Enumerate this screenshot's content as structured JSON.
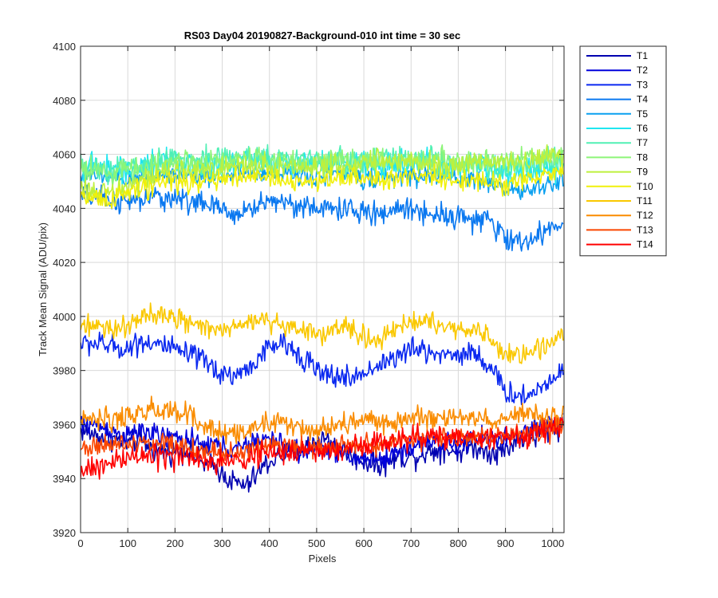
{
  "chart_data": {
    "type": "line",
    "title": "RS03 Day04 20190827-Background-010 int time = 30 sec",
    "xlabel": "Pixels",
    "ylabel": "Track Mean Signal (ADU/pix)",
    "xlim": [
      0,
      1024
    ],
    "ylim": [
      3920,
      4100
    ],
    "xticks": [
      0,
      100,
      200,
      300,
      400,
      500,
      600,
      700,
      800,
      900,
      1000
    ],
    "yticks": [
      3920,
      3940,
      3960,
      3980,
      4000,
      4020,
      4040,
      4060,
      4080,
      4100
    ],
    "grid": true,
    "legend_position": "outside-top-right",
    "x": [
      0,
      32,
      64,
      96,
      128,
      160,
      192,
      224,
      256,
      288,
      320,
      352,
      384,
      416,
      448,
      480,
      512,
      544,
      576,
      608,
      640,
      672,
      704,
      736,
      768,
      800,
      832,
      864,
      896,
      928,
      960,
      992,
      1023
    ],
    "series": [
      {
        "name": "T1",
        "color": "#0000b0",
        "values": [
          3958,
          3956,
          3955,
          3953,
          3954,
          3950,
          3950,
          3951,
          3946,
          3944,
          3939,
          3937,
          3944,
          3948,
          3950,
          3952,
          3955,
          3952,
          3948,
          3946,
          3945,
          3948,
          3948,
          3950,
          3951,
          3950,
          3952,
          3950,
          3950,
          3955,
          3955,
          3958,
          3960
        ],
        "noise": 5.0
      },
      {
        "name": "T2",
        "color": "#0000dc",
        "values": [
          3960,
          3960,
          3958,
          3955,
          3958,
          3956,
          3955,
          3955,
          3952,
          3953,
          3950,
          3952,
          3955,
          3954,
          3950,
          3950,
          3952,
          3950,
          3947,
          3948,
          3947,
          3950,
          3952,
          3954,
          3953,
          3952,
          3955,
          3955,
          3955,
          3956,
          3958,
          3960,
          3962
        ],
        "noise": 4.5
      },
      {
        "name": "T3",
        "color": "#0a28f0",
        "values": [
          3990,
          3990,
          3989,
          3988,
          3991,
          3990,
          3988,
          3986,
          3984,
          3980,
          3978,
          3980,
          3986,
          3990,
          3988,
          3984,
          3978,
          3978,
          3977,
          3980,
          3983,
          3985,
          3988,
          3987,
          3986,
          3986,
          3987,
          3982,
          3973,
          3970,
          3972,
          3976,
          3982
        ],
        "noise": 5.0
      },
      {
        "name": "T4",
        "color": "#0a78f0",
        "values": [
          4044,
          4044,
          4043,
          4042,
          4043,
          4044,
          4044,
          4043,
          4042,
          4040,
          4038,
          4039,
          4042,
          4043,
          4042,
          4040,
          4040,
          4040,
          4039,
          4038,
          4038,
          4040,
          4040,
          4038,
          4038,
          4037,
          4036,
          4035,
          4030,
          4027,
          4029,
          4032,
          4035
        ],
        "noise": 5.0
      },
      {
        "name": "T5",
        "color": "#0aa0f0",
        "values": [
          4052,
          4052,
          4051,
          4050,
          4051,
          4052,
          4053,
          4052,
          4052,
          4052,
          4052,
          4053,
          4052,
          4053,
          4053,
          4052,
          4052,
          4053,
          4052,
          4051,
          4051,
          4052,
          4052,
          4052,
          4052,
          4051,
          4051,
          4050,
          4047,
          4046,
          4047,
          4049,
          4050
        ],
        "noise": 4.0
      },
      {
        "name": "T6",
        "color": "#20e6f0",
        "values": [
          4056,
          4056,
          4055,
          4054,
          4055,
          4056,
          4057,
          4056,
          4056,
          4056,
          4057,
          4058,
          4057,
          4057,
          4057,
          4057,
          4056,
          4057,
          4056,
          4056,
          4056,
          4057,
          4057,
          4057,
          4056,
          4056,
          4056,
          4055,
          4053,
          4053,
          4054,
          4055,
          4056
        ],
        "noise": 5.5
      },
      {
        "name": "T7",
        "color": "#50f0b4",
        "values": [
          4056,
          4055,
          4054,
          4055,
          4056,
          4057,
          4058,
          4058,
          4058,
          4058,
          4059,
          4060,
          4059,
          4058,
          4058,
          4058,
          4057,
          4058,
          4057,
          4057,
          4058,
          4059,
          4058,
          4058,
          4057,
          4057,
          4057,
          4056,
          4055,
          4055,
          4056,
          4057,
          4058
        ],
        "noise": 5.5
      },
      {
        "name": "T8",
        "color": "#8cf578",
        "values": [
          4055,
          4054,
          4053,
          4054,
          4055,
          4056,
          4057,
          4058,
          4057,
          4057,
          4058,
          4058,
          4058,
          4057,
          4057,
          4057,
          4057,
          4058,
          4058,
          4058,
          4058,
          4058,
          4058,
          4058,
          4057,
          4057,
          4058,
          4058,
          4058,
          4058,
          4058,
          4059,
          4060
        ],
        "noise": 5.0
      },
      {
        "name": "T9",
        "color": "#bef03c",
        "values": [
          4048,
          4046,
          4045,
          4048,
          4050,
          4052,
          4053,
          4054,
          4054,
          4054,
          4055,
          4056,
          4056,
          4055,
          4055,
          4055,
          4055,
          4056,
          4056,
          4057,
          4057,
          4057,
          4057,
          4057,
          4056,
          4056,
          4057,
          4057,
          4057,
          4057,
          4058,
          4059,
          4060
        ],
        "noise": 5.0
      },
      {
        "name": "T10",
        "color": "#f0f00a",
        "values": [
          4045,
          4044,
          4043,
          4045,
          4047,
          4049,
          4050,
          4050,
          4050,
          4050,
          4051,
          4052,
          4051,
          4050,
          4050,
          4050,
          4050,
          4051,
          4051,
          4051,
          4051,
          4052,
          4052,
          4052,
          4051,
          4051,
          4051,
          4050,
          4049,
          4050,
          4051,
          4052,
          4054
        ],
        "noise": 4.5
      },
      {
        "name": "T11",
        "color": "#fac800",
        "values": [
          3996,
          3996,
          3995,
          3997,
          3999,
          4001,
          3999,
          3998,
          3996,
          3995,
          3995,
          3997,
          3999,
          3998,
          3996,
          3995,
          3994,
          3996,
          3995,
          3992,
          3992,
          3995,
          3998,
          3998,
          3996,
          3995,
          3996,
          3992,
          3986,
          3986,
          3988,
          3990,
          3994
        ],
        "noise": 4.5
      },
      {
        "name": "T12",
        "color": "#fa8c00",
        "values": [
          3962,
          3962,
          3962,
          3963,
          3964,
          3965,
          3965,
          3963,
          3960,
          3958,
          3956,
          3957,
          3960,
          3961,
          3960,
          3958,
          3958,
          3960,
          3960,
          3961,
          3961,
          3962,
          3963,
          3962,
          3962,
          3962,
          3963,
          3962,
          3962,
          3963,
          3963,
          3963,
          3963
        ],
        "noise": 5.0
      },
      {
        "name": "T13",
        "color": "#fa4600",
        "values": [
          3952,
          3952,
          3952,
          3953,
          3953,
          3954,
          3953,
          3952,
          3950,
          3950,
          3949,
          3950,
          3952,
          3953,
          3952,
          3951,
          3951,
          3952,
          3952,
          3953,
          3953,
          3954,
          3955,
          3955,
          3955,
          3955,
          3955,
          3955,
          3955,
          3956,
          3957,
          3958,
          3959
        ],
        "noise": 4.5
      },
      {
        "name": "T14",
        "color": "#ff0000",
        "values": [
          3942,
          3944,
          3946,
          3947,
          3948,
          3948,
          3948,
          3948,
          3947,
          3946,
          3946,
          3947,
          3949,
          3950,
          3950,
          3950,
          3950,
          3951,
          3952,
          3953,
          3953,
          3954,
          3955,
          3955,
          3955,
          3955,
          3955,
          3955,
          3955,
          3956,
          3957,
          3958,
          3960
        ],
        "noise": 5.0
      }
    ]
  }
}
